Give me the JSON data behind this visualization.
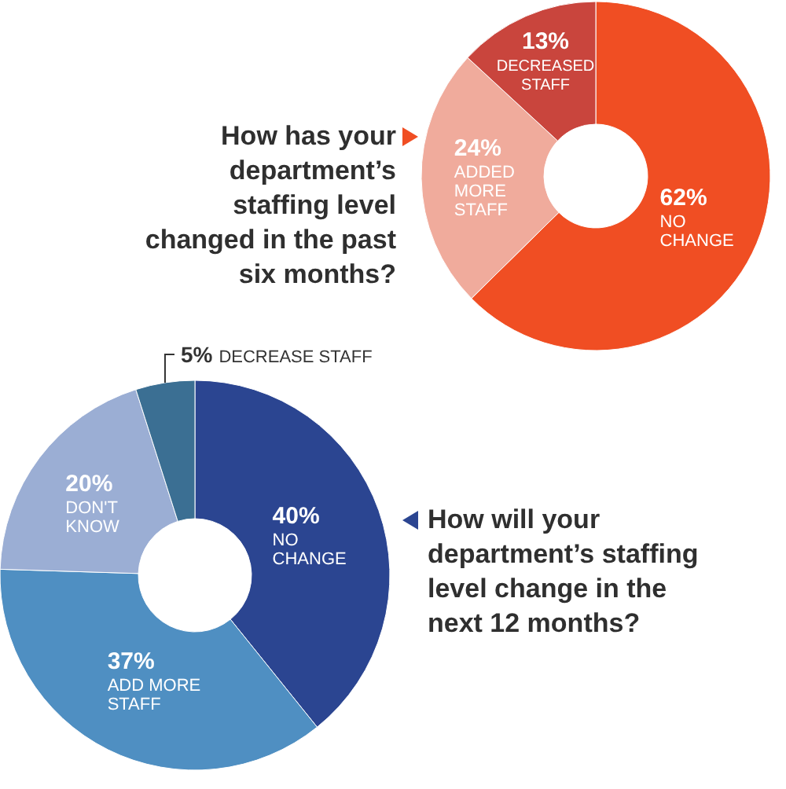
{
  "chart_data": [
    {
      "type": "donut",
      "title": "How has your\ndepartment’s\nstaffing level\nchanged in the past\nsix months?",
      "categories": [
        "NO CHANGE",
        "ADDED MORE STAFF",
        "DECREASED STAFF"
      ],
      "values": [
        62,
        24,
        13
      ],
      "value_labels": [
        "62%",
        "24%",
        "13%"
      ],
      "colors": [
        "#f04e23",
        "#f0ab9c",
        "#c9453d"
      ]
    },
    {
      "type": "donut",
      "title": "How will your\ndepartment’s staffing\nlevel change in the\nnext 12 months?",
      "categories": [
        "NO CHANGE",
        "ADD MORE STAFF",
        "DON'T KNOW",
        "DECREASE STAFF"
      ],
      "values": [
        40,
        37,
        20,
        5
      ],
      "value_labels": [
        "40%",
        "37%",
        "20%",
        "5%"
      ],
      "colors": [
        "#2b4591",
        "#4f8fc2",
        "#9baed4",
        "#3b6f93"
      ]
    }
  ]
}
